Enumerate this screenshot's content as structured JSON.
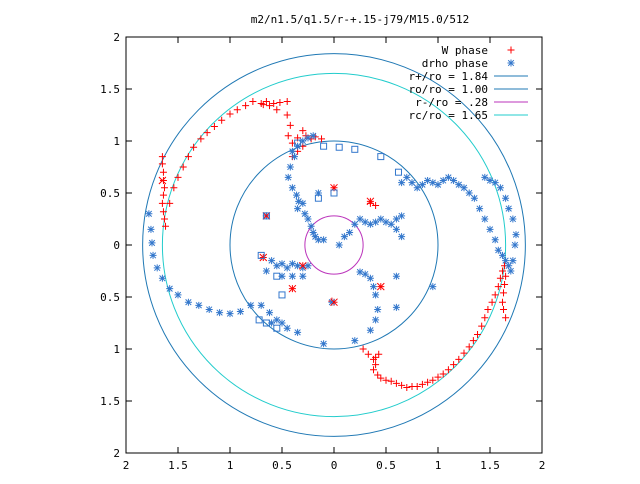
{
  "chart_data": {
    "type": "scatter",
    "title": "m2/n1.5/q1.5/r-+.15-j79/M15.0/512",
    "xlim": [
      -2,
      2
    ],
    "ylim": [
      -2,
      2
    ],
    "x_ticks": [
      -2,
      -1.5,
      -1,
      -0.5,
      0,
      0.5,
      1,
      1.5,
      2
    ],
    "y_ticks": [
      -2,
      -1.5,
      -1,
      -0.5,
      0,
      0.5,
      1,
      1.5,
      2
    ],
    "x_tick_labels": [
      "2",
      "1.5",
      "1",
      "0.5",
      "0",
      "0.5",
      "1",
      "1.5",
      "2"
    ],
    "y_tick_labels": [
      "2",
      "1.5",
      "1",
      "0.5",
      "0",
      "0.5",
      "1",
      "1.5",
      "2"
    ],
    "grid": false,
    "legend_position": "top-right",
    "series": [
      {
        "name": "W phase",
        "kind": "points",
        "marker": "plus",
        "color": "#ff0000",
        "points": [
          [
            -1.65,
            0.85
          ],
          [
            -1.65,
            0.78
          ],
          [
            -1.64,
            0.7
          ],
          [
            -1.64,
            0.62
          ],
          [
            -1.63,
            0.55
          ],
          [
            -1.64,
            0.48
          ],
          [
            -1.65,
            0.4
          ],
          [
            -1.64,
            0.32
          ],
          [
            -1.63,
            0.25
          ],
          [
            -1.62,
            0.18
          ],
          [
            -1.58,
            0.4
          ],
          [
            -1.54,
            0.55
          ],
          [
            -1.5,
            0.65
          ],
          [
            -1.45,
            0.75
          ],
          [
            -1.4,
            0.85
          ],
          [
            -1.35,
            0.94
          ],
          [
            -1.28,
            1.02
          ],
          [
            -1.22,
            1.08
          ],
          [
            -1.15,
            1.14
          ],
          [
            -1.08,
            1.2
          ],
          [
            -1.0,
            1.26
          ],
          [
            -0.93,
            1.3
          ],
          [
            -0.85,
            1.34
          ],
          [
            -0.78,
            1.38
          ],
          [
            -0.7,
            1.36
          ],
          [
            -0.65,
            1.38
          ],
          [
            -0.58,
            1.36
          ],
          [
            -0.52,
            1.37
          ],
          [
            -0.45,
            1.38
          ],
          [
            -0.68,
            1.35
          ],
          [
            -0.62,
            1.34
          ],
          [
            -0.55,
            1.3
          ],
          [
            -0.45,
            1.25
          ],
          [
            -0.42,
            1.15
          ],
          [
            -0.44,
            1.05
          ],
          [
            -0.4,
            0.98
          ],
          [
            -0.35,
            1.03
          ],
          [
            -0.3,
            1.1
          ],
          [
            -0.27,
            1.05
          ],
          [
            -0.22,
            1.02
          ],
          [
            -0.18,
            1.04
          ],
          [
            -0.12,
            1.02
          ],
          [
            -0.3,
            0.95
          ],
          [
            -0.35,
            0.9
          ],
          [
            -0.4,
            0.85
          ],
          [
            0.0,
            0.55
          ],
          [
            0.35,
            0.42
          ],
          [
            0.35,
            0.4
          ],
          [
            0.4,
            0.38
          ],
          [
            -0.65,
            0.28
          ],
          [
            -0.68,
            -0.12
          ],
          [
            -0.3,
            -0.2
          ],
          [
            -0.4,
            -0.42
          ],
          [
            0.0,
            -0.55
          ],
          [
            -0.02,
            -0.54
          ],
          [
            0.45,
            -0.4
          ],
          [
            0.28,
            -1.0
          ],
          [
            0.33,
            -1.05
          ],
          [
            0.38,
            -1.1
          ],
          [
            0.4,
            -1.08
          ],
          [
            0.43,
            -1.05
          ],
          [
            0.4,
            -1.15
          ],
          [
            0.38,
            -1.2
          ],
          [
            0.42,
            -1.25
          ],
          [
            0.45,
            -1.28
          ],
          [
            0.5,
            -1.3
          ],
          [
            0.55,
            -1.31
          ],
          [
            0.6,
            -1.33
          ],
          [
            0.65,
            -1.35
          ],
          [
            0.7,
            -1.37
          ],
          [
            0.75,
            -1.36
          ],
          [
            0.8,
            -1.36
          ],
          [
            0.85,
            -1.34
          ],
          [
            0.9,
            -1.32
          ],
          [
            0.95,
            -1.3
          ],
          [
            1.0,
            -1.27
          ],
          [
            1.05,
            -1.24
          ],
          [
            1.1,
            -1.2
          ],
          [
            1.15,
            -1.15
          ],
          [
            1.2,
            -1.1
          ],
          [
            1.25,
            -1.04
          ],
          [
            1.3,
            -0.98
          ],
          [
            1.34,
            -0.92
          ],
          [
            1.38,
            -0.86
          ],
          [
            1.42,
            -0.78
          ],
          [
            1.45,
            -0.7
          ],
          [
            1.48,
            -0.62
          ],
          [
            1.52,
            -0.55
          ],
          [
            1.55,
            -0.48
          ],
          [
            1.58,
            -0.4
          ],
          [
            1.6,
            -0.32
          ],
          [
            1.62,
            -0.25
          ],
          [
            1.64,
            -0.2
          ],
          [
            1.65,
            -0.3
          ],
          [
            1.64,
            -0.38
          ],
          [
            1.63,
            -0.46
          ],
          [
            1.62,
            -0.55
          ],
          [
            1.63,
            -0.62
          ],
          [
            1.65,
            -0.7
          ]
        ]
      },
      {
        "name": "drho phase",
        "kind": "points",
        "marker": "star",
        "color": "#3377cc",
        "points": [
          [
            -1.78,
            0.3
          ],
          [
            -1.76,
            0.15
          ],
          [
            -1.75,
            0.02
          ],
          [
            -1.74,
            -0.1
          ],
          [
            -1.7,
            -0.22
          ],
          [
            -1.65,
            -0.32
          ],
          [
            -1.58,
            -0.42
          ],
          [
            -1.5,
            -0.48
          ],
          [
            -1.4,
            -0.55
          ],
          [
            -1.3,
            -0.58
          ],
          [
            -1.2,
            -0.62
          ],
          [
            -1.1,
            -0.65
          ],
          [
            -1.0,
            -0.66
          ],
          [
            -0.9,
            -0.64
          ],
          [
            -0.8,
            -0.58
          ],
          [
            -0.7,
            -0.58
          ],
          [
            -0.62,
            -0.65
          ],
          [
            -0.55,
            -0.72
          ],
          [
            -0.5,
            -0.75
          ],
          [
            -0.6,
            -0.75
          ],
          [
            -0.45,
            -0.8
          ],
          [
            -0.35,
            -0.84
          ],
          [
            -0.1,
            -0.95
          ],
          [
            0.2,
            -0.92
          ],
          [
            0.35,
            -0.82
          ],
          [
            0.4,
            -0.72
          ],
          [
            0.42,
            -0.62
          ],
          [
            0.4,
            -0.48
          ],
          [
            0.38,
            -0.4
          ],
          [
            0.35,
            -0.32
          ],
          [
            0.3,
            -0.28
          ],
          [
            0.25,
            -0.26
          ],
          [
            0.6,
            -0.6
          ],
          [
            0.6,
            -0.3
          ],
          [
            0.95,
            -0.4
          ],
          [
            -0.65,
            0.28
          ],
          [
            -0.65,
            -0.25
          ],
          [
            -0.6,
            -0.15
          ],
          [
            -0.55,
            -0.2
          ],
          [
            -0.5,
            -0.18
          ],
          [
            -0.45,
            -0.22
          ],
          [
            -0.4,
            -0.18
          ],
          [
            -0.35,
            -0.2
          ],
          [
            -0.3,
            -0.22
          ],
          [
            -0.25,
            -0.2
          ],
          [
            -0.5,
            -0.3
          ],
          [
            -0.4,
            -0.3
          ],
          [
            -0.3,
            -0.3
          ],
          [
            -0.02,
            -0.55
          ],
          [
            -0.35,
            0.35
          ],
          [
            -0.3,
            0.4
          ],
          [
            -0.28,
            0.3
          ],
          [
            -0.25,
            0.25
          ],
          [
            -0.22,
            0.18
          ],
          [
            -0.2,
            0.12
          ],
          [
            -0.18,
            0.08
          ],
          [
            -0.15,
            0.05
          ],
          [
            -0.1,
            0.05
          ],
          [
            0.05,
            0.0
          ],
          [
            0.1,
            0.08
          ],
          [
            0.15,
            0.12
          ],
          [
            0.2,
            0.2
          ],
          [
            0.25,
            0.25
          ],
          [
            0.3,
            0.22
          ],
          [
            0.35,
            0.2
          ],
          [
            0.4,
            0.22
          ],
          [
            0.45,
            0.25
          ],
          [
            0.5,
            0.22
          ],
          [
            0.55,
            0.2
          ],
          [
            0.6,
            0.15
          ],
          [
            0.65,
            0.08
          ],
          [
            0.6,
            0.25
          ],
          [
            0.65,
            0.28
          ],
          [
            -0.38,
            0.85
          ],
          [
            -0.42,
            0.75
          ],
          [
            -0.44,
            0.65
          ],
          [
            -0.4,
            0.55
          ],
          [
            -0.36,
            0.48
          ],
          [
            -0.34,
            0.42
          ],
          [
            -0.15,
            0.5
          ],
          [
            -0.4,
            0.9
          ],
          [
            -0.35,
            0.95
          ],
          [
            -0.3,
            1.0
          ],
          [
            -0.25,
            1.03
          ],
          [
            -0.2,
            1.05
          ],
          [
            0.65,
            0.6
          ],
          [
            0.7,
            0.65
          ],
          [
            0.75,
            0.6
          ],
          [
            0.8,
            0.55
          ],
          [
            0.85,
            0.58
          ],
          [
            0.9,
            0.62
          ],
          [
            0.95,
            0.6
          ],
          [
            1.0,
            0.58
          ],
          [
            1.05,
            0.62
          ],
          [
            1.1,
            0.65
          ],
          [
            1.15,
            0.62
          ],
          [
            1.2,
            0.58
          ],
          [
            1.25,
            0.55
          ],
          [
            1.3,
            0.5
          ],
          [
            1.35,
            0.45
          ],
          [
            1.4,
            0.35
          ],
          [
            1.45,
            0.25
          ],
          [
            1.5,
            0.15
          ],
          [
            1.55,
            0.05
          ],
          [
            1.58,
            -0.05
          ],
          [
            1.62,
            -0.1
          ],
          [
            1.65,
            -0.15
          ],
          [
            1.68,
            -0.2
          ],
          [
            1.7,
            -0.25
          ],
          [
            1.72,
            -0.15
          ],
          [
            1.74,
            0.0
          ],
          [
            1.75,
            0.1
          ],
          [
            1.72,
            0.25
          ],
          [
            1.68,
            0.35
          ],
          [
            1.65,
            0.45
          ],
          [
            1.6,
            0.55
          ],
          [
            1.55,
            0.6
          ],
          [
            1.5,
            0.62
          ],
          [
            1.45,
            0.65
          ]
        ]
      },
      {
        "name": "",
        "kind": "points",
        "marker": "x",
        "color": "#ff0000",
        "points": [
          [
            -1.65,
            0.62
          ],
          [
            -0.65,
            0.28
          ],
          [
            0.0,
            0.55
          ],
          [
            0.35,
            0.42
          ],
          [
            -0.3,
            -0.2
          ],
          [
            0.45,
            -0.4
          ],
          [
            0.0,
            -0.55
          ],
          [
            -0.68,
            -0.12
          ],
          [
            -0.4,
            -0.42
          ]
        ]
      },
      {
        "name": "",
        "kind": "points",
        "marker": "box",
        "color": "#3377cc",
        "points": [
          [
            -0.35,
            0.98
          ],
          [
            -0.1,
            0.95
          ],
          [
            0.05,
            0.94
          ],
          [
            0.2,
            0.92
          ],
          [
            0.45,
            0.85
          ],
          [
            0.62,
            0.7
          ],
          [
            -0.65,
            0.28
          ],
          [
            -0.7,
            -0.1
          ],
          [
            -0.55,
            -0.3
          ],
          [
            -0.5,
            -0.48
          ],
          [
            -0.15,
            0.45
          ],
          [
            0.0,
            0.5
          ],
          [
            -0.72,
            -0.72
          ],
          [
            -0.65,
            -0.75
          ],
          [
            -0.55,
            -0.8
          ]
        ]
      },
      {
        "name": "r+/ro = 1.84",
        "kind": "circle",
        "radius": 1.84,
        "color": "#1f78b4"
      },
      {
        "name": "ro/ro = 1.00",
        "kind": "circle",
        "radius": 1.0,
        "color": "#1f78b4"
      },
      {
        "name": "r-/ro =  .28",
        "kind": "circle",
        "radius": 0.28,
        "color": "#bb33bb"
      },
      {
        "name": "rc/ro = 1.65",
        "kind": "circle",
        "radius": 1.65,
        "color": "#22cccc"
      }
    ]
  }
}
